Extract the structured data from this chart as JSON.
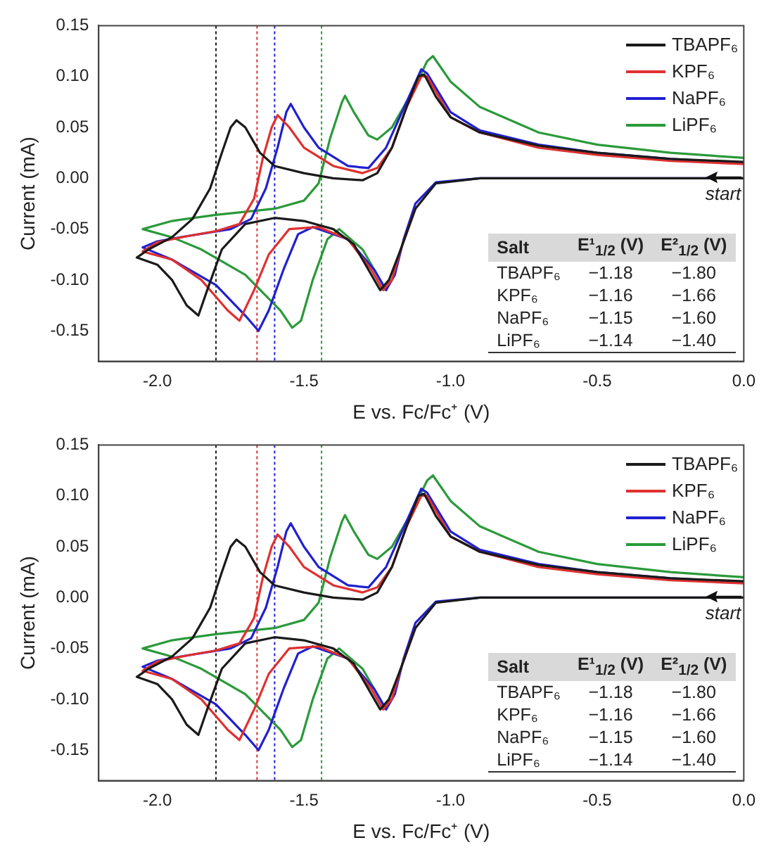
{
  "chart_data": [
    {
      "type": "line",
      "xlabel": "E vs. Fc/Fc⁺ (V)",
      "ylabel": "Current (mA)",
      "xlim": [
        -2.2,
        0.0
      ],
      "ylim": [
        -0.18,
        0.15
      ],
      "xticks": [
        {
          "value": -2.0,
          "label": "-2.0"
        },
        {
          "value": -1.5,
          "label": "-1.5"
        },
        {
          "value": -1.0,
          "label": "-1.0"
        },
        {
          "value": -0.5,
          "label": "-0.5"
        },
        {
          "value": 0.0,
          "label": "0.0"
        }
      ],
      "yticks": [
        {
          "value": -0.15,
          "label": "-0.15"
        },
        {
          "value": -0.1,
          "label": "-0.10"
        },
        {
          "value": -0.05,
          "label": "-0.05"
        },
        {
          "value": 0,
          "label": "0.00"
        },
        {
          "value": 0.05,
          "label": "0.05"
        },
        {
          "value": 0.1,
          "label": "0.10"
        },
        {
          "value": 0.15,
          "label": "0.15"
        }
      ],
      "grid": false,
      "legend": "top right",
      "series": [
        {
          "name": "TBAPF₆",
          "color": "#1a1a1a",
          "x": [
            0,
            -0.9,
            -1.05,
            -1.12,
            -1.17,
            -1.21,
            -1.24,
            -1.28,
            -1.33,
            -1.4,
            -1.5,
            -1.6,
            -1.7,
            -1.78,
            -1.83,
            -1.86,
            -1.9,
            -1.95,
            -2.0,
            -2.07,
            -2.03,
            -1.95,
            -1.88,
            -1.82,
            -1.78,
            -1.75,
            -1.73,
            -1.7,
            -1.65,
            -1.6,
            -1.5,
            -1.4,
            -1.3,
            -1.25,
            -1.2,
            -1.15,
            -1.11,
            -1.09,
            -1.05,
            -1.0,
            -0.9,
            -0.7,
            -0.5,
            -0.25,
            0.0
          ],
          "values": [
            0,
            0,
            -0.005,
            -0.03,
            -0.07,
            -0.1,
            -0.11,
            -0.09,
            -0.065,
            -0.05,
            -0.042,
            -0.039,
            -0.045,
            -0.07,
            -0.11,
            -0.135,
            -0.125,
            -0.1,
            -0.085,
            -0.078,
            -0.07,
            -0.058,
            -0.04,
            -0.01,
            0.025,
            0.05,
            0.057,
            0.05,
            0.025,
            0.012,
            0.005,
            0,
            -0.002,
            0.005,
            0.03,
            0.07,
            0.1,
            0.102,
            0.08,
            0.06,
            0.045,
            0.032,
            0.025,
            0.019,
            0.016
          ]
        },
        {
          "name": "KPF₆",
          "color": "#e03030",
          "x": [
            -1.12,
            -1.17,
            -1.2,
            -1.23,
            -1.27,
            -1.35,
            -1.45,
            -1.55,
            -1.62,
            -1.67,
            -1.72,
            -1.76,
            -1.85,
            -1.95,
            -2.05,
            -2.0,
            -1.9,
            -1.8,
            -1.72,
            -1.67,
            -1.64,
            -1.61,
            -1.59,
            -1.55,
            -1.5,
            -1.4,
            -1.3,
            -1.25,
            -1.2,
            -1.15,
            -1.1,
            -1.08,
            -1.0,
            -0.9,
            -0.7,
            -0.5,
            -0.25,
            0.0
          ],
          "values": [
            -0.03,
            -0.07,
            -0.1,
            -0.11,
            -0.09,
            -0.06,
            -0.048,
            -0.05,
            -0.075,
            -0.11,
            -0.14,
            -0.13,
            -0.1,
            -0.08,
            -0.072,
            -0.063,
            -0.057,
            -0.052,
            -0.045,
            -0.02,
            0.02,
            0.05,
            0.062,
            0.05,
            0.03,
            0.012,
            0.005,
            0.01,
            0.03,
            0.07,
            0.1,
            0.1,
            0.06,
            0.045,
            0.03,
            0.023,
            0.017,
            0.014
          ]
        },
        {
          "name": "NaPF₆",
          "color": "#2020d0",
          "x": [
            0,
            -0.9,
            -1.05,
            -1.12,
            -1.16,
            -1.19,
            -1.22,
            -1.26,
            -1.35,
            -1.47,
            -1.52,
            -1.57,
            -1.62,
            -1.655,
            -1.7,
            -1.8,
            -1.95,
            -2.05,
            -2.0,
            -1.9,
            -1.75,
            -1.68,
            -1.63,
            -1.59,
            -1.56,
            -1.545,
            -1.5,
            -1.45,
            -1.35,
            -1.28,
            -1.22,
            -1.15,
            -1.1,
            -1.08,
            -1.0,
            -0.9,
            -0.7,
            -0.5,
            -0.25,
            0.0
          ],
          "values": [
            0,
            0,
            -0.004,
            -0.025,
            -0.06,
            -0.095,
            -0.11,
            -0.09,
            -0.06,
            -0.048,
            -0.055,
            -0.09,
            -0.13,
            -0.15,
            -0.135,
            -0.105,
            -0.08,
            -0.068,
            -0.062,
            -0.057,
            -0.05,
            -0.04,
            -0.01,
            0.03,
            0.065,
            0.073,
            0.05,
            0.03,
            0.012,
            0.01,
            0.03,
            0.075,
            0.107,
            0.103,
            0.065,
            0.047,
            0.033,
            0.025,
            0.019,
            0.015
          ]
        },
        {
          "name": "LiPF₆",
          "color": "#2a9a3a",
          "x": [
            -1.22,
            -1.26,
            -1.3,
            -1.38,
            -1.42,
            -1.47,
            -1.51,
            -1.54,
            -1.58,
            -1.7,
            -1.85,
            -1.95,
            -2.05,
            -1.95,
            -1.8,
            -1.6,
            -1.5,
            -1.45,
            -1.41,
            -1.37,
            -1.36,
            -1.33,
            -1.28,
            -1.25,
            -1.2,
            -1.13,
            -1.08,
            -1.06,
            -1.0,
            -0.9,
            -0.7,
            -0.5,
            -0.25,
            0.0
          ],
          "values": [
            -0.11,
            -0.09,
            -0.07,
            -0.05,
            -0.06,
            -0.1,
            -0.14,
            -0.147,
            -0.13,
            -0.095,
            -0.07,
            -0.058,
            -0.05,
            -0.042,
            -0.036,
            -0.03,
            -0.022,
            -0.005,
            0.04,
            0.075,
            0.081,
            0.065,
            0.042,
            0.038,
            0.05,
            0.085,
            0.115,
            0.12,
            0.095,
            0.07,
            0.045,
            0.033,
            0.025,
            0.02
          ]
        }
      ],
      "ref_lines": [
        {
          "axis": "x",
          "value": -1.8,
          "color": "#1a1a1a",
          "line_style": "dotted"
        },
        {
          "axis": "x",
          "value": -1.66,
          "color": "#e03030",
          "line_style": "dotted"
        },
        {
          "axis": "x",
          "value": -1.6,
          "color": "#2020d0",
          "line_style": "dotted"
        },
        {
          "axis": "x",
          "value": -1.44,
          "color": "#2a9a3a",
          "line_style": "dotted"
        }
      ],
      "annotations": [
        "start",
        "Salt",
        "E¹$_{1/2}$ (V)",
        "E²$_{1/2}$ (V)",
        "TBAPF₆",
        "−1.18",
        "−1.80",
        "KPF₆",
        "−1.16",
        "−1.66",
        "NaPF₆",
        "−1.15",
        "−1.60",
        "LiPF₆",
        "−1.14",
        "−1.40"
      ]
    },
    {
      "type": "line",
      "xlabel": "E vs. Fc/Fc⁺ (V)",
      "ylabel": "Current (mA)",
      "xlim": [
        -2.2,
        0.0
      ],
      "ylim": [
        -0.18,
        0.15
      ],
      "xticks": [
        {
          "value": -2.0,
          "label": "-2.0"
        },
        {
          "value": -1.5,
          "label": "-1.5"
        },
        {
          "value": -1.0,
          "label": "-1.0"
        },
        {
          "value": -0.5,
          "label": "-0.5"
        },
        {
          "value": 0.0,
          "label": "0.0"
        }
      ],
      "yticks": [
        {
          "value": -0.15,
          "label": "-0.15"
        },
        {
          "value": -0.1,
          "label": "-0.10"
        },
        {
          "value": -0.05,
          "label": "-0.05"
        },
        {
          "value": 0,
          "label": "0.00"
        },
        {
          "value": 0.05,
          "label": "0.05"
        },
        {
          "value": 0.1,
          "label": "0.10"
        },
        {
          "value": 0.15,
          "label": "0.15"
        }
      ],
      "grid": false,
      "legend": "top right",
      "series": [
        {
          "name": "TBAPF₆",
          "color": "#1a1a1a",
          "x": [
            0,
            -0.9,
            -1.05,
            -1.12,
            -1.17,
            -1.21,
            -1.24,
            -1.28,
            -1.33,
            -1.4,
            -1.5,
            -1.6,
            -1.7,
            -1.78,
            -1.83,
            -1.86,
            -1.9,
            -1.95,
            -2.0,
            -2.07,
            -2.03,
            -1.95,
            -1.88,
            -1.82,
            -1.78,
            -1.75,
            -1.73,
            -1.7,
            -1.65,
            -1.6,
            -1.5,
            -1.4,
            -1.3,
            -1.25,
            -1.2,
            -1.15,
            -1.11,
            -1.09,
            -1.05,
            -1.0,
            -0.9,
            -0.7,
            -0.5,
            -0.25,
            0.0
          ],
          "values": [
            0,
            0,
            -0.005,
            -0.03,
            -0.07,
            -0.1,
            -0.11,
            -0.09,
            -0.065,
            -0.05,
            -0.042,
            -0.039,
            -0.045,
            -0.07,
            -0.11,
            -0.135,
            -0.125,
            -0.1,
            -0.085,
            -0.078,
            -0.07,
            -0.058,
            -0.04,
            -0.01,
            0.025,
            0.05,
            0.057,
            0.05,
            0.025,
            0.012,
            0.005,
            0,
            -0.002,
            0.005,
            0.03,
            0.07,
            0.1,
            0.102,
            0.08,
            0.06,
            0.045,
            0.032,
            0.025,
            0.019,
            0.016
          ]
        },
        {
          "name": "KPF₆",
          "color": "#e03030",
          "x": [
            -1.12,
            -1.17,
            -1.2,
            -1.23,
            -1.27,
            -1.35,
            -1.45,
            -1.55,
            -1.62,
            -1.67,
            -1.72,
            -1.76,
            -1.85,
            -1.95,
            -2.05,
            -2.0,
            -1.9,
            -1.8,
            -1.72,
            -1.67,
            -1.64,
            -1.61,
            -1.59,
            -1.55,
            -1.5,
            -1.4,
            -1.3,
            -1.25,
            -1.2,
            -1.15,
            -1.1,
            -1.08,
            -1.0,
            -0.9,
            -0.7,
            -0.5,
            -0.25,
            0.0
          ],
          "values": [
            -0.03,
            -0.07,
            -0.1,
            -0.11,
            -0.09,
            -0.06,
            -0.048,
            -0.05,
            -0.075,
            -0.11,
            -0.14,
            -0.13,
            -0.1,
            -0.08,
            -0.072,
            -0.063,
            -0.057,
            -0.052,
            -0.045,
            -0.02,
            0.02,
            0.05,
            0.062,
            0.05,
            0.03,
            0.012,
            0.005,
            0.01,
            0.03,
            0.07,
            0.1,
            0.1,
            0.06,
            0.045,
            0.03,
            0.023,
            0.017,
            0.014
          ]
        },
        {
          "name": "NaPF₆",
          "color": "#2020d0",
          "x": [
            0,
            -0.9,
            -1.05,
            -1.12,
            -1.16,
            -1.19,
            -1.22,
            -1.26,
            -1.35,
            -1.47,
            -1.52,
            -1.57,
            -1.62,
            -1.655,
            -1.7,
            -1.8,
            -1.95,
            -2.05,
            -2.0,
            -1.9,
            -1.75,
            -1.68,
            -1.63,
            -1.59,
            -1.56,
            -1.545,
            -1.5,
            -1.45,
            -1.35,
            -1.28,
            -1.22,
            -1.15,
            -1.1,
            -1.08,
            -1.0,
            -0.9,
            -0.7,
            -0.5,
            -0.25,
            0.0
          ],
          "values": [
            0,
            0,
            -0.004,
            -0.025,
            -0.06,
            -0.095,
            -0.11,
            -0.09,
            -0.06,
            -0.048,
            -0.055,
            -0.09,
            -0.13,
            -0.15,
            -0.135,
            -0.105,
            -0.08,
            -0.068,
            -0.062,
            -0.057,
            -0.05,
            -0.04,
            -0.01,
            0.03,
            0.065,
            0.073,
            0.05,
            0.03,
            0.012,
            0.01,
            0.03,
            0.075,
            0.107,
            0.103,
            0.065,
            0.047,
            0.033,
            0.025,
            0.019,
            0.015
          ]
        },
        {
          "name": "LiPF₆",
          "color": "#2a9a3a",
          "x": [
            -1.22,
            -1.26,
            -1.3,
            -1.38,
            -1.42,
            -1.47,
            -1.51,
            -1.54,
            -1.58,
            -1.7,
            -1.85,
            -1.95,
            -2.05,
            -1.95,
            -1.8,
            -1.6,
            -1.5,
            -1.45,
            -1.41,
            -1.37,
            -1.36,
            -1.33,
            -1.28,
            -1.25,
            -1.2,
            -1.13,
            -1.08,
            -1.06,
            -1.0,
            -0.9,
            -0.7,
            -0.5,
            -0.25,
            0.0
          ],
          "values": [
            -0.11,
            -0.09,
            -0.07,
            -0.05,
            -0.06,
            -0.1,
            -0.14,
            -0.147,
            -0.13,
            -0.095,
            -0.07,
            -0.058,
            -0.05,
            -0.042,
            -0.036,
            -0.03,
            -0.022,
            -0.005,
            0.04,
            0.075,
            0.081,
            0.065,
            0.042,
            0.038,
            0.05,
            0.085,
            0.115,
            0.12,
            0.095,
            0.07,
            0.045,
            0.033,
            0.025,
            0.02
          ]
        }
      ],
      "ref_lines": [
        {
          "axis": "x",
          "value": -1.8,
          "color": "#1a1a1a",
          "line_style": "dotted"
        },
        {
          "axis": "x",
          "value": -1.66,
          "color": "#e03030",
          "line_style": "dotted"
        },
        {
          "axis": "x",
          "value": -1.6,
          "color": "#2020d0",
          "line_style": "dotted"
        },
        {
          "axis": "x",
          "value": -1.44,
          "color": "#2a9a3a",
          "line_style": "dotted"
        }
      ],
      "annotations": [
        "start",
        "Salt",
        "E¹$_{1/2}$ (V)",
        "E²$_{1/2}$ (V)",
        "TBAPF₆",
        "−1.18",
        "−1.80",
        "KPF₆",
        "−1.16",
        "−1.66",
        "NaPF₆",
        "−1.15",
        "−1.60",
        "LiPF₆",
        "−1.14",
        "−1.40"
      ]
    }
  ]
}
